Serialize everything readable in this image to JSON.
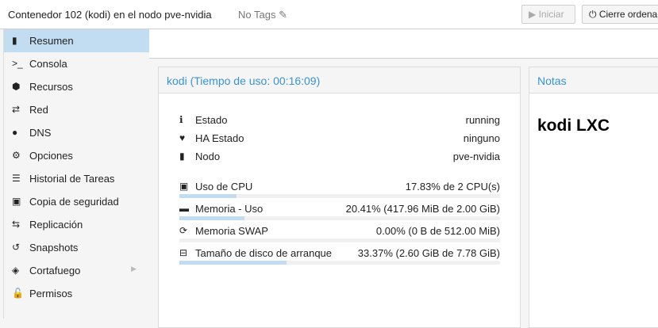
{
  "header": {
    "title": "Contenedor 102 (kodi) en el nodo pve-nvidia",
    "tags": "No Tags",
    "start_label": "Iniciar",
    "shutdown_label": "Cierre ordena"
  },
  "sidebar": {
    "items": [
      {
        "label": "Resumen",
        "icon": "book-icon",
        "glyph": "▮"
      },
      {
        "label": "Consola",
        "icon": "terminal-icon",
        "glyph": ">_"
      },
      {
        "label": "Recursos",
        "icon": "cube-icon",
        "glyph": "⬢"
      },
      {
        "label": "Red",
        "icon": "exchange-icon",
        "glyph": "⇄"
      },
      {
        "label": "DNS",
        "icon": "globe-icon",
        "glyph": "●"
      },
      {
        "label": "Opciones",
        "icon": "gear-icon",
        "glyph": "⚙"
      },
      {
        "label": "Historial de Tareas",
        "icon": "list-icon",
        "glyph": "☰"
      },
      {
        "label": "Copia de seguridad",
        "icon": "floppy-icon",
        "glyph": "▣"
      },
      {
        "label": "Replicación",
        "icon": "retweet-icon",
        "glyph": "⇆"
      },
      {
        "label": "Snapshots",
        "icon": "history-icon",
        "glyph": "↺"
      },
      {
        "label": "Cortafuego",
        "icon": "shield-icon",
        "glyph": "◈"
      },
      {
        "label": "Permisos",
        "icon": "unlock-icon",
        "glyph": "🔓"
      }
    ]
  },
  "status": {
    "title": "kodi (Tiempo de uso: 00:16:09)",
    "info": [
      {
        "label": "Estado",
        "value": "running",
        "icon": "info-icon",
        "glyph": "ℹ"
      },
      {
        "label": "HA Estado",
        "value": "ninguno",
        "icon": "heartbeat-icon",
        "glyph": "♥"
      },
      {
        "label": "Nodo",
        "value": "pve-nvidia",
        "icon": "server-icon",
        "glyph": "▮"
      }
    ],
    "usage": [
      {
        "label": "Uso de CPU",
        "value": "17.83% de 2 CPU(s)",
        "percent": 17.83,
        "icon": "cpu-icon",
        "glyph": "▣"
      },
      {
        "label": "Memoria - Uso",
        "value": "20.41% (417.96 MiB de 2.00 GiB)",
        "percent": 20.41,
        "icon": "memory-icon",
        "glyph": "▬"
      },
      {
        "label": "Memoria SWAP",
        "value": "0.00% (0 B de 512.00 MiB)",
        "percent": 0,
        "icon": "refresh-icon",
        "glyph": "⟳"
      },
      {
        "label": "Tamaño de disco de arranque",
        "value": "33.37% (2.60 GiB de 7.78 GiB)",
        "percent": 33.37,
        "icon": "hdd-icon",
        "glyph": "⊟"
      }
    ]
  },
  "notes": {
    "title": "Notas",
    "content": "kodi LXC"
  }
}
